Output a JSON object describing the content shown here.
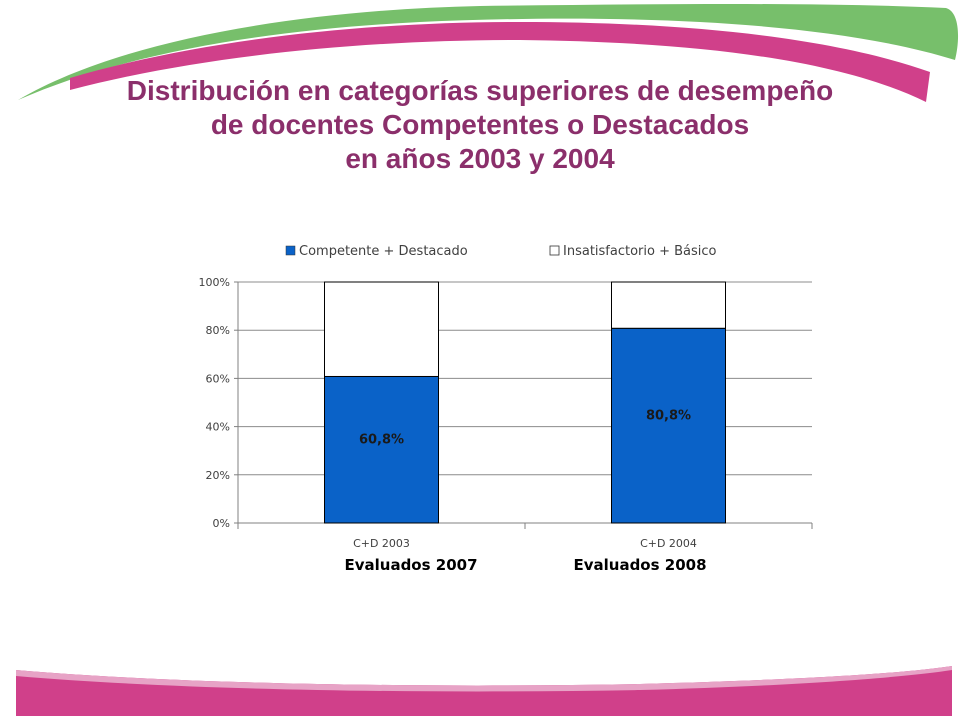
{
  "header": {
    "title_lines": [
      "Distribución en categorías superiores de desempeño",
      "de docentes Competentes o Destacados",
      "en años 2003 y 2004"
    ]
  },
  "colors": {
    "title": "#8b2f6b",
    "magenta_band": "#d0408a",
    "green_band": "#77bf6b",
    "bar_primary": "#0a62c8",
    "bar_secondary": "#ffffff"
  },
  "chart_data": {
    "type": "bar",
    "stacked": true,
    "categories": [
      "C+D 2003",
      "C+D 2004"
    ],
    "sub_labels": [
      "Evaluados 2007",
      "Evaluados 2008"
    ],
    "series": [
      {
        "name": "Competente + Destacado",
        "values": [
          60.8,
          80.8
        ],
        "color": "#0a62c8",
        "data_labels": [
          "60,8%",
          "80,8%"
        ]
      },
      {
        "name": "Insatisfactorio + Básico",
        "values": [
          39.2,
          19.2
        ],
        "color": "#ffffff"
      }
    ],
    "yticks": [
      "0%",
      "20%",
      "40%",
      "60%",
      "80%",
      "100%"
    ],
    "ylim": [
      0,
      100
    ],
    "grid": true,
    "legend_position": "top"
  }
}
